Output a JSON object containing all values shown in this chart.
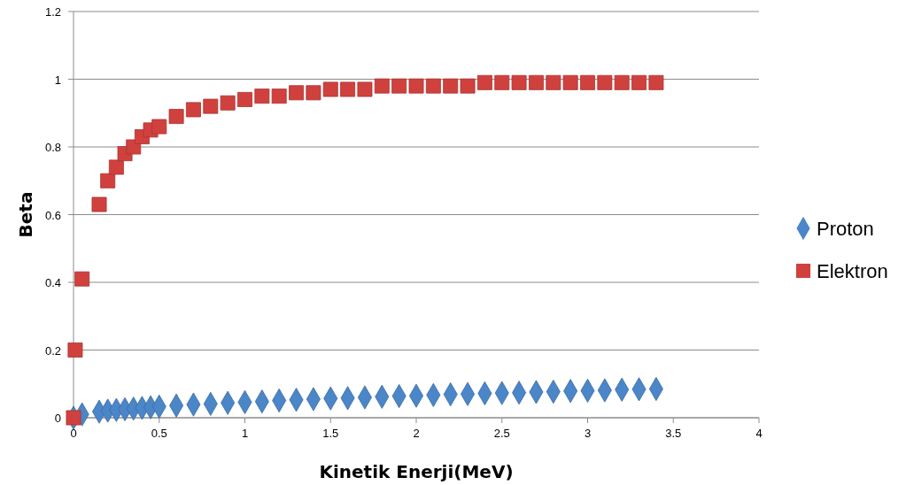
{
  "chart_data": {
    "type": "scatter",
    "xlabel": "Kinetik Enerji(MeV)",
    "ylabel": "Beta",
    "x": [
      0,
      0.01,
      0.05,
      0.15,
      0.2,
      0.25,
      0.3,
      0.35,
      0.4,
      0.45,
      0.5,
      0.6,
      0.7,
      0.8,
      0.9,
      1.0,
      1.1,
      1.2,
      1.3,
      1.4,
      1.5,
      1.6,
      1.7,
      1.8,
      1.9,
      2.0,
      2.1,
      2.2,
      2.3,
      2.4,
      2.5,
      2.6,
      2.7,
      2.8,
      2.9,
      3.0,
      3.1,
      3.2,
      3.3,
      3.4
    ],
    "series": [
      {
        "name": "Proton",
        "color": "#4a86c8",
        "marker": "diamond",
        "values": [
          0,
          null,
          0.01,
          0.018,
          0.021,
          0.023,
          0.025,
          0.027,
          0.029,
          0.031,
          0.033,
          0.036,
          0.039,
          0.041,
          0.044,
          0.046,
          0.048,
          0.051,
          0.053,
          0.055,
          0.057,
          0.058,
          0.06,
          0.062,
          0.064,
          0.065,
          0.067,
          0.069,
          0.07,
          0.072,
          0.073,
          0.074,
          0.076,
          0.077,
          0.079,
          0.08,
          0.081,
          0.083,
          0.084,
          0.085
        ]
      },
      {
        "name": "Elektron",
        "color": "#d0413e",
        "marker": "square",
        "values": [
          0,
          0.2,
          0.41,
          0.63,
          0.7,
          0.74,
          0.78,
          0.8,
          0.83,
          0.85,
          0.86,
          0.89,
          0.91,
          0.92,
          0.93,
          0.94,
          0.95,
          0.95,
          0.96,
          0.96,
          0.97,
          0.97,
          0.97,
          0.98,
          0.98,
          0.98,
          0.98,
          0.98,
          0.98,
          0.99,
          0.99,
          0.99,
          0.99,
          0.99,
          0.99,
          0.99,
          0.99,
          0.99,
          0.99,
          0.99
        ]
      }
    ],
    "xlim": [
      0,
      4
    ],
    "xticks": [
      0,
      0.5,
      1,
      1.5,
      2,
      2.5,
      3,
      3.5,
      4
    ],
    "ylim": [
      0,
      1.2
    ],
    "yticks": [
      0,
      0.2,
      0.4,
      0.6,
      0.8,
      1,
      1.2
    ],
    "grid": "y",
    "legend": "right"
  }
}
